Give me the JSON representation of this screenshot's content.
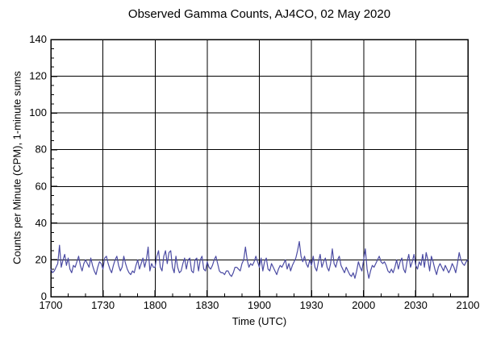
{
  "page": {
    "background": "#ffffff"
  },
  "chart_data": {
    "type": "line",
    "title": "Observed Gamma Counts, AJ4CO, 02 May 2020",
    "xlabel": "Time (UTC)",
    "ylabel": "Counts per Minute (CPM), 1-minute sums",
    "x_unit": "minutes after 1700 UTC, 1 sample per minute",
    "x_start": 0,
    "x_end": 240,
    "x_major_ticks": [
      {
        "t": 0,
        "label": "1700"
      },
      {
        "t": 30,
        "label": "1730"
      },
      {
        "t": 60,
        "label": "1800"
      },
      {
        "t": 90,
        "label": "1830"
      },
      {
        "t": 120,
        "label": "1900"
      },
      {
        "t": 150,
        "label": "1930"
      },
      {
        "t": 180,
        "label": "2000"
      },
      {
        "t": 210,
        "label": "2030"
      },
      {
        "t": 240,
        "label": "2100"
      }
    ],
    "x_minor_step": 10,
    "ylim": [
      0,
      140
    ],
    "y_major_step": 20,
    "y_minor_step": 5,
    "grid": {
      "major_x": true,
      "major_y": true,
      "minor": false
    },
    "legend": "none",
    "line_color": "#4b4ba3",
    "axis_color": "#000000",
    "background_color": "#ffffff",
    "series": [
      {
        "name": "Observed gamma counts (CPM)",
        "values": [
          15,
          13,
          14,
          16,
          18,
          28,
          16,
          20,
          23,
          17,
          21,
          15,
          13,
          17,
          16,
          19,
          22,
          17,
          14,
          18,
          20,
          18,
          16,
          21,
          17,
          14,
          12,
          16,
          19,
          18,
          15,
          21,
          22,
          18,
          15,
          13,
          17,
          20,
          22,
          17,
          14,
          16,
          22,
          18,
          15,
          13,
          12,
          14,
          13,
          17,
          20,
          15,
          18,
          21,
          16,
          20,
          27,
          14,
          18,
          16,
          16,
          22,
          25,
          16,
          14,
          22,
          25,
          18,
          24,
          25,
          16,
          13,
          22,
          16,
          13,
          14,
          18,
          21,
          15,
          20,
          21,
          14,
          13,
          20,
          21,
          14,
          20,
          22,
          15,
          14,
          19,
          16,
          15,
          17,
          20,
          22,
          18,
          14,
          13,
          13,
          12,
          14,
          14,
          12,
          11,
          13,
          16,
          16,
          15,
          14,
          18,
          20,
          27,
          20,
          16,
          18,
          17,
          19,
          22,
          19,
          16,
          21,
          14,
          19,
          21,
          15,
          14,
          18,
          16,
          14,
          12,
          15,
          17,
          16,
          18,
          20,
          15,
          18,
          14,
          17,
          19,
          21,
          25,
          30,
          22,
          19,
          22,
          18,
          16,
          20,
          17,
          22,
          16,
          14,
          19,
          23,
          16,
          19,
          21,
          16,
          14,
          18,
          26,
          18,
          16,
          20,
          22,
          17,
          15,
          13,
          16,
          14,
          12,
          11,
          13,
          10,
          14,
          19,
          16,
          14,
          20,
          26,
          15,
          10,
          14,
          17,
          16,
          18,
          20,
          22,
          19,
          18,
          19,
          17,
          14,
          13,
          15,
          13,
          16,
          20,
          15,
          19,
          21,
          15,
          13,
          19,
          23,
          16,
          19,
          23,
          17,
          15,
          19,
          17,
          23,
          16,
          24,
          20,
          14,
          22,
          19,
          15,
          12,
          16,
          18,
          16,
          14,
          17,
          15,
          13,
          15,
          18,
          16,
          13,
          18,
          24,
          20,
          18,
          17,
          19,
          20
        ]
      }
    ]
  }
}
